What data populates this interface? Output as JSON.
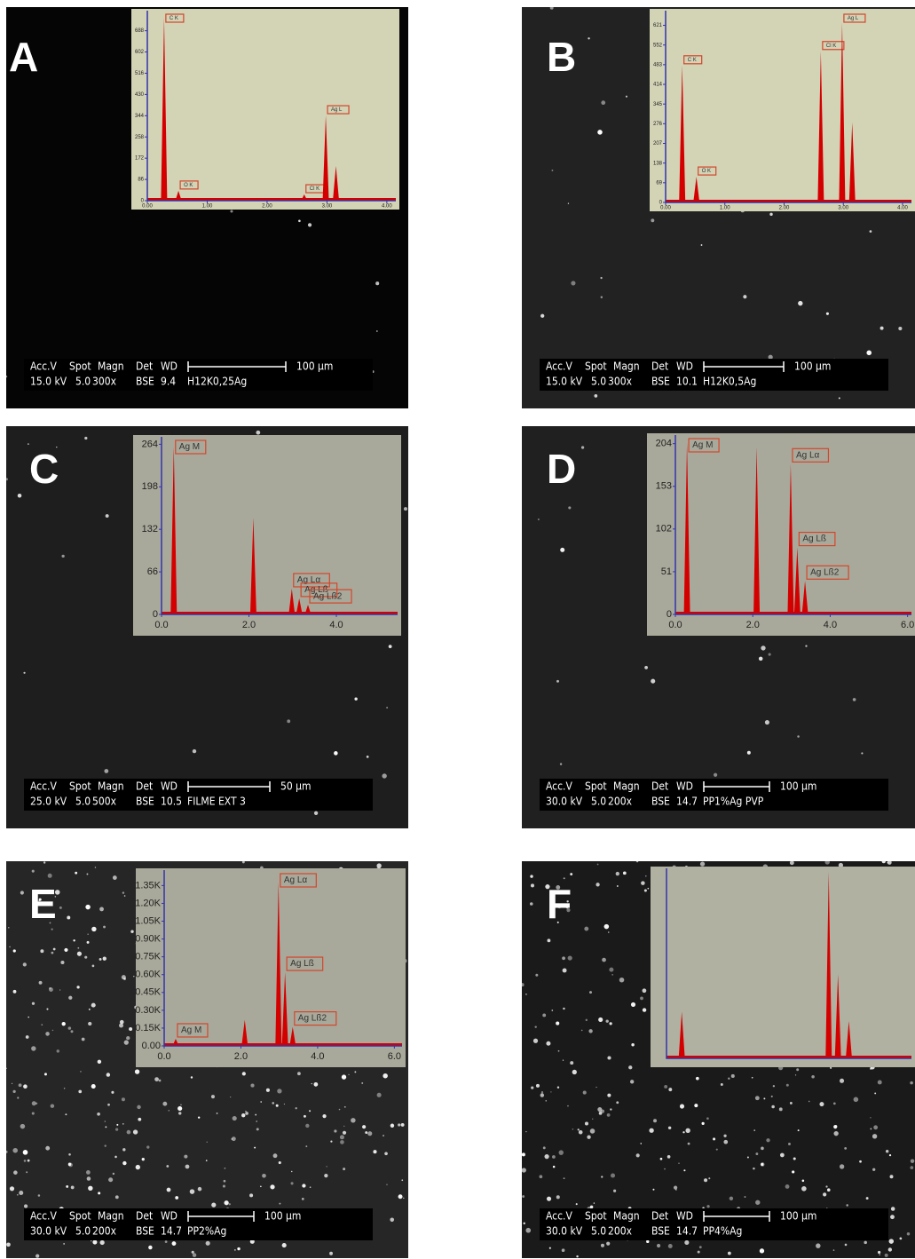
{
  "info_headers": [
    "Acc.V",
    "Spot",
    "Magn",
    "Det",
    "WD"
  ],
  "panels": [
    {
      "letter": "A",
      "acc_v": "15.0 kV",
      "spot": "5.0",
      "magn": "300x",
      "det": "BSE",
      "wd": "9.4",
      "sample": "H12K0,25Ag",
      "scale": "100 µm",
      "chart_data": {
        "type": "spectrum",
        "xlim": [
          0,
          4.15
        ],
        "ylim": [
          0,
          755
        ],
        "xticks": [
          {
            "value": 0,
            "label": "0.00"
          },
          {
            "value": 1,
            "label": "1.00"
          },
          {
            "value": 2,
            "label": "2.00"
          },
          {
            "value": 3,
            "label": "3.00"
          },
          {
            "value": 4,
            "label": "4.00"
          }
        ],
        "yticks": [
          0,
          86,
          172,
          258,
          344,
          430,
          516,
          602,
          688
        ],
        "peaks": [
          {
            "x": 0.28,
            "y": 740,
            "label": "C K"
          },
          {
            "x": 0.52,
            "y": 40,
            "label": "O K"
          },
          {
            "x": 2.62,
            "y": 25,
            "label": "Cl K"
          },
          {
            "x": 2.98,
            "y": 345,
            "label": "Ag L"
          },
          {
            "x": 3.15,
            "y": 140
          }
        ],
        "inset_color": "#d3d3b6"
      }
    },
    {
      "letter": "B",
      "acc_v": "15.0 kV",
      "spot": "5.0",
      "magn": "300x",
      "det": "BSE",
      "wd": "10.1",
      "sample": "H12K0,5Ag",
      "scale": "100 µm",
      "chart_data": {
        "type": "spectrum",
        "xlim": [
          0,
          4.15
        ],
        "ylim": [
          0,
          660
        ],
        "xticks": [
          {
            "value": 0,
            "label": "0.00"
          },
          {
            "value": 1,
            "label": "1.00"
          },
          {
            "value": 2,
            "label": "2.00"
          },
          {
            "value": 3,
            "label": "3.00"
          },
          {
            "value": 4,
            "label": "4.00"
          }
        ],
        "yticks": [
          0,
          69,
          138,
          207,
          276,
          345,
          414,
          483,
          552,
          621
        ],
        "peaks": [
          {
            "x": 0.28,
            "y": 480,
            "label": "C K"
          },
          {
            "x": 0.52,
            "y": 90,
            "label": "O K"
          },
          {
            "x": 2.62,
            "y": 530,
            "label": "Cl K"
          },
          {
            "x": 2.98,
            "y": 630,
            "label": "Ag L"
          },
          {
            "x": 3.15,
            "y": 280
          }
        ],
        "inset_color": "#d3d3b6"
      }
    },
    {
      "letter": "C",
      "acc_v": "25.0 kV",
      "spot": "5.0",
      "magn": "500x",
      "det": "BSE",
      "wd": "10.5",
      "sample": "FILME EXT 3",
      "scale": "50 µm",
      "chart_data": {
        "type": "spectrum",
        "xlim": [
          0,
          5.4
        ],
        "ylim": [
          0,
          270
        ],
        "xticks": [
          {
            "value": 0,
            "label": "0.0"
          },
          {
            "value": 2,
            "label": "2.0"
          },
          {
            "value": 4,
            "label": "4.0"
          }
        ],
        "yticks": [
          0,
          66,
          132,
          198,
          264
        ],
        "peaks": [
          {
            "x": 0.28,
            "y": 260,
            "label": "Ag M"
          },
          {
            "x": 2.1,
            "y": 150
          },
          {
            "x": 2.98,
            "y": 40,
            "label": "Ag Lα"
          },
          {
            "x": 3.15,
            "y": 25,
            "label": "Ag Lß"
          },
          {
            "x": 3.35,
            "y": 15,
            "label": "Ag Lß2"
          }
        ],
        "inset_color": "#a9a99b"
      }
    },
    {
      "letter": "D",
      "acc_v": "30.0 kV",
      "spot": "5.0",
      "magn": "200x",
      "det": "BSE",
      "wd": "14.7",
      "sample": "PP1%Ag PVP",
      "scale": "100 µm",
      "chart_data": {
        "type": "spectrum",
        "xlim": [
          0,
          6.1
        ],
        "ylim": [
          0,
          210
        ],
        "xticks": [
          {
            "value": 0,
            "label": "0.0"
          },
          {
            "value": 2,
            "label": "2.0"
          },
          {
            "value": 4,
            "label": "4.0"
          },
          {
            "value": 6,
            "label": "6.0"
          }
        ],
        "yticks": [
          0,
          51,
          102,
          153,
          204
        ],
        "peaks": [
          {
            "x": 0.3,
            "y": 205,
            "label": "Ag M"
          },
          {
            "x": 2.1,
            "y": 200
          },
          {
            "x": 2.98,
            "y": 180,
            "label": "Ag Lα"
          },
          {
            "x": 3.15,
            "y": 80,
            "label": "Ag Lß"
          },
          {
            "x": 3.35,
            "y": 40,
            "label": "Ag Lß2"
          }
        ],
        "inset_color": "#a9a99b"
      }
    },
    {
      "letter": "E",
      "acc_v": "30.0 kV",
      "spot": "5.0",
      "magn": "200x",
      "det": "BSE",
      "wd": "14.7",
      "sample": "PP2%Ag",
      "scale": "100 µm",
      "chart_data": {
        "type": "spectrum",
        "xlim": [
          0,
          6.2
        ],
        "ylim": [
          0,
          1450
        ],
        "xticks": [
          {
            "value": 0,
            "label": "0.0"
          },
          {
            "value": 2,
            "label": "2.0"
          },
          {
            "value": 4,
            "label": "4.0"
          },
          {
            "value": 6,
            "label": "6.0"
          }
        ],
        "yticks": [
          {
            "value": 0,
            "label": "0.00"
          },
          {
            "value": 150,
            "label": "0.15K"
          },
          {
            "value": 300,
            "label": "0.30K"
          },
          {
            "value": 450,
            "label": "0.45K"
          },
          {
            "value": 600,
            "label": "0.60K"
          },
          {
            "value": 750,
            "label": "0.75K"
          },
          {
            "value": 900,
            "label": "0.90K"
          },
          {
            "value": 1050,
            "label": "1.05K"
          },
          {
            "value": 1200,
            "label": "1.20K"
          },
          {
            "value": 1350,
            "label": "1.35K"
          }
        ],
        "peaks": [
          {
            "x": 0.3,
            "y": 60,
            "label": "Ag M"
          },
          {
            "x": 2.1,
            "y": 220
          },
          {
            "x": 2.98,
            "y": 1380,
            "label": "Ag Lα"
          },
          {
            "x": 3.15,
            "y": 620,
            "label": "Ag Lß"
          },
          {
            "x": 3.35,
            "y": 160,
            "label": "Ag Lß2"
          }
        ],
        "inset_color": "#a9a99b"
      }
    },
    {
      "letter": "F",
      "acc_v": "30.0 kV",
      "spot": "5.0",
      "magn": "200x",
      "det": "BSE",
      "wd": "14.7",
      "sample": "PP4%Ag",
      "scale": "100 µm",
      "chart_data": {
        "type": "spectrum",
        "xlim": [
          0,
          4.5
        ],
        "ylim": [
          0,
          100
        ],
        "peaks": [
          {
            "x": 0.28,
            "y": 25
          },
          {
            "x": 2.98,
            "y": 100
          },
          {
            "x": 3.15,
            "y": 45
          },
          {
            "x": 3.35,
            "y": 20
          }
        ],
        "inset_color": "#b1b1a2"
      }
    }
  ]
}
